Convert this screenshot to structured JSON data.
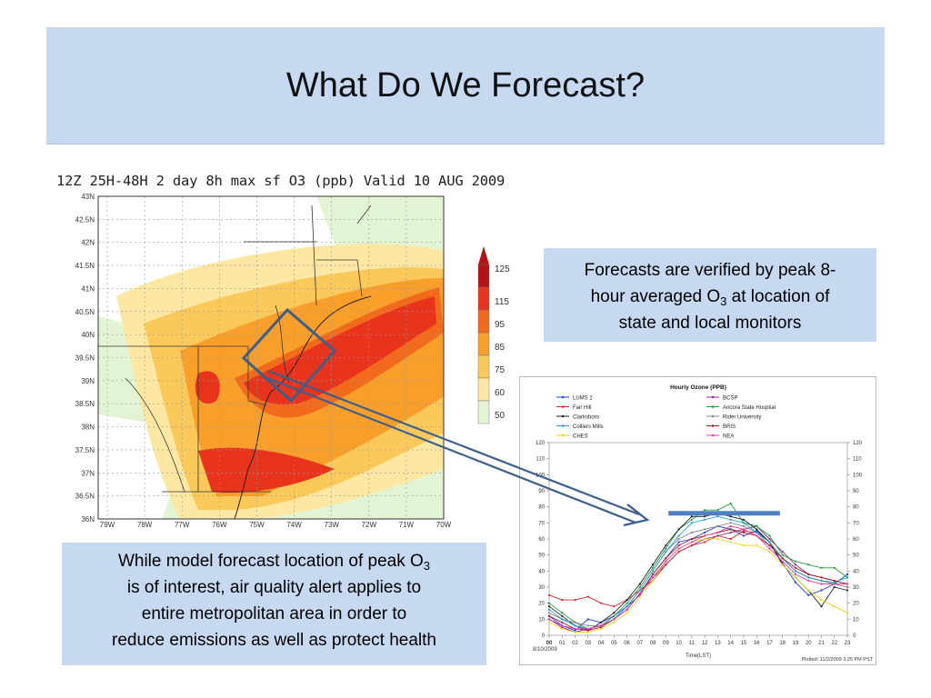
{
  "slide": {
    "title": "What Do We Forecast?",
    "callout_right": {
      "line1": "Forecasts are verified by peak 8-",
      "line2_pre": "hour averaged O",
      "line2_sub": "3",
      "line2_post": " at location of",
      "line3": "state and local monitors"
    },
    "callout_left": {
      "line1_pre": "While model forecast location of peak O",
      "line1_sub": "3",
      "line2": "is of interest, air quality alert applies to",
      "line3": "entire metropolitan area in order to",
      "line4": "reduce emissions as well as protect health"
    }
  },
  "map": {
    "title": "12Z 25H-48H 2 day 8h max sf O3 (ppb) Valid 10 AUG 2009",
    "lat_labels": [
      "43N",
      "42.5N",
      "42N",
      "41.5N",
      "41N",
      "40.5N",
      "40N",
      "39.5N",
      "39N",
      "38.5N",
      "38N",
      "37.5N",
      "37N",
      "36.5N",
      "36N"
    ],
    "lon_labels": [
      "79W",
      "78W",
      "77W",
      "76W",
      "75W",
      "74W",
      "73W",
      "72W",
      "71W",
      "70W"
    ],
    "colorbar": {
      "labels": [
        "125",
        "115",
        "95",
        "85",
        "75",
        "60",
        "50"
      ],
      "colors": [
        "#b51414",
        "#e8341c",
        "#f26b1d",
        "#f79f2a",
        "#fbc95a",
        "#fde8a3",
        "#e3f4d4"
      ]
    },
    "colors": {
      "land": "#ffffff",
      "light_green": "#e3f4d4",
      "pale_yellow": "#fde8a3",
      "yellow": "#fbc95a",
      "orange": "#f79f2a",
      "dark_orange": "#f26b1d",
      "red": "#e8341c",
      "box": "#3d5f8c"
    }
  },
  "timeseries": {
    "title": "Hourly Ozone (PPB)",
    "legend": [
      {
        "name": "LUMS 2",
        "color": "#1f3fd8"
      },
      {
        "name": "BCSP",
        "color": "#8b2d8b"
      },
      {
        "name": "Fair Hill",
        "color": "#d8242a"
      },
      {
        "name": "Ancora State Hosptial",
        "color": "#1f9f3a"
      },
      {
        "name": "Clarksboro",
        "color": "#222222"
      },
      {
        "name": "Rider University",
        "color": "#8a8a8a"
      },
      {
        "name": "Colliers Mills",
        "color": "#1fa0d8"
      },
      {
        "name": "BRIS",
        "color": "#a02020"
      },
      {
        "name": "CHES",
        "color": "#e8d81a"
      },
      {
        "name": "NEA",
        "color": "#e83aa8"
      }
    ],
    "y_ticks": [
      "0",
      "10",
      "20",
      "30",
      "40",
      "50",
      "60",
      "70",
      "80",
      "90",
      "100",
      "110",
      "120"
    ],
    "ylim": [
      0,
      120
    ],
    "x_ticks": [
      "00",
      "01",
      "02",
      "03",
      "04",
      "05",
      "06",
      "07",
      "08",
      "09",
      "10",
      "11",
      "12",
      "13",
      "14",
      "15",
      "16",
      "17",
      "18",
      "19",
      "20",
      "21",
      "22",
      "23"
    ],
    "date_label": "8/10/2009",
    "xlabel": "Time(LST)",
    "plotted_label": "Plotted:  11/2/2009 3:25 PM PST",
    "highlight_level": 76,
    "highlight_color": "#4f7fc0",
    "series": [
      {
        "name": "LUMS 2",
        "values": [
          12,
          6,
          3,
          10,
          8,
          12,
          18,
          25,
          38,
          48,
          58,
          60,
          64,
          68,
          66,
          62,
          65,
          58,
          45,
          33,
          25,
          28,
          32,
          38
        ]
      },
      {
        "name": "BCSP",
        "values": [
          10,
          5,
          2,
          4,
          6,
          10,
          16,
          26,
          36,
          44,
          52,
          56,
          60,
          62,
          64,
          66,
          68,
          60,
          52,
          44,
          38,
          36,
          34,
          32
        ]
      },
      {
        "name": "Fair Hill",
        "values": [
          25,
          22,
          22,
          24,
          20,
          18,
          22,
          28,
          34,
          44,
          52,
          56,
          58,
          62,
          60,
          65,
          64,
          58,
          48,
          40,
          36,
          34,
          32,
          30
        ]
      },
      {
        "name": "Ancora State Hosptial",
        "values": [
          20,
          14,
          8,
          4,
          6,
          12,
          20,
          30,
          42,
          54,
          66,
          72,
          78,
          78,
          82,
          70,
          68,
          62,
          50,
          46,
          44,
          42,
          42,
          36
        ]
      },
      {
        "name": "Clarksboro",
        "values": [
          18,
          12,
          6,
          3,
          8,
          14,
          22,
          32,
          44,
          56,
          66,
          74,
          74,
          76,
          74,
          72,
          66,
          58,
          44,
          36,
          28,
          18,
          30,
          28
        ]
      },
      {
        "name": "Rider University",
        "values": [
          14,
          10,
          8,
          6,
          6,
          10,
          18,
          28,
          40,
          52,
          60,
          64,
          66,
          68,
          70,
          68,
          64,
          56,
          48,
          40,
          36,
          34,
          32,
          30
        ]
      },
      {
        "name": "Colliers Mills",
        "values": [
          16,
          10,
          6,
          4,
          6,
          10,
          18,
          28,
          40,
          52,
          62,
          70,
          72,
          74,
          72,
          70,
          64,
          58,
          48,
          40,
          36,
          34,
          33,
          36
        ]
      },
      {
        "name": "BRIS",
        "values": [
          12,
          8,
          4,
          3,
          5,
          10,
          16,
          26,
          38,
          48,
          56,
          60,
          62,
          64,
          66,
          64,
          62,
          56,
          48,
          42,
          38,
          36,
          34,
          32
        ]
      },
      {
        "name": "CHES",
        "values": [
          8,
          4,
          2,
          2,
          4,
          8,
          14,
          24,
          34,
          46,
          54,
          58,
          60,
          60,
          58,
          56,
          56,
          52,
          44,
          36,
          28,
          22,
          18,
          14
        ]
      },
      {
        "name": "NEA",
        "values": [
          10,
          6,
          4,
          4,
          6,
          10,
          16,
          26,
          36,
          46,
          54,
          58,
          62,
          64,
          68,
          66,
          62,
          54,
          46,
          38,
          34,
          32,
          32,
          32
        ]
      }
    ]
  }
}
